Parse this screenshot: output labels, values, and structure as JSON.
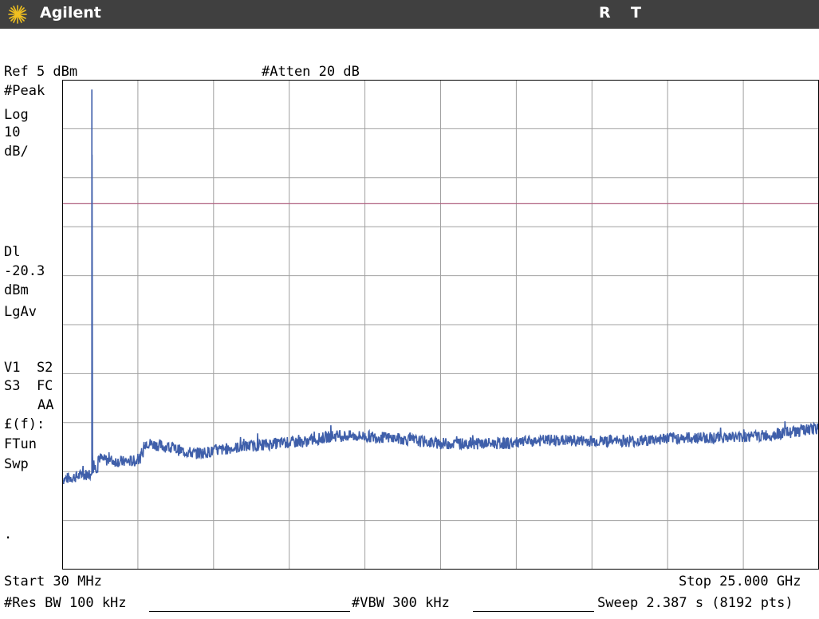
{
  "header": {
    "brand": "Agilent",
    "logo_icon": "agilent-spark-icon",
    "status_r": "R",
    "status_t": "T"
  },
  "top_bar": {
    "ref_level": "Ref 5 dBm",
    "attenuation": "#Atten 20 dB"
  },
  "left_annotations": {
    "detector": "#Peak",
    "scale_type": "Log",
    "scale_value": "10",
    "scale_unit": "dB/",
    "display_line_label": "Dl",
    "display_line_value": "-20.3",
    "display_line_unit": "dBm",
    "averaging": "LgAv",
    "trace_status_1": "V1  S2",
    "trace_status_2": "S3  FC",
    "trace_status_3": "AA",
    "correction": "£(f):",
    "ftun": "FTun",
    "swp": "Swp",
    "dot": "."
  },
  "bottom_bar": {
    "start": "Start 30 MHz",
    "stop": "Stop 25.000 GHz",
    "rbw": "#Res BW 100 kHz",
    "vbw": "#VBW 300 kHz",
    "sweep": "Sweep 2.387 s (8192 pts)"
  },
  "colors": {
    "trace": "#3f5faa",
    "display_line": "#b06080",
    "grid": "#a0a0a0",
    "title_bar": "#404040"
  },
  "chart_data": {
    "type": "line",
    "x_unit": "MHz",
    "y_unit": "dBm",
    "xlim": [
      30,
      25000
    ],
    "ylim": [
      -95,
      5
    ],
    "ref_level_dbm": 5,
    "db_per_div": 10,
    "divisions_x": 10,
    "divisions_y": 10,
    "grid": true,
    "display_line_dbm": -20.3,
    "noise_amplitude_db": 1.2,
    "series": [
      {
        "x": [
          30,
          980,
          1005,
          1010,
          1030,
          1040,
          1200,
          1210,
          1260,
          1400,
          2000,
          2500,
          2700,
          2720,
          2760,
          3000,
          3500,
          4000,
          4400,
          5000,
          5500,
          5800,
          6000,
          7000,
          8000,
          9000,
          10000,
          11000,
          12000,
          12500,
          14000,
          15000,
          16000,
          18000,
          19000,
          20000,
          22000,
          23000,
          25000
        ],
        "y": [
          -76.6,
          -75.4,
          -75.0,
          3.0,
          -74.8,
          -74.2,
          -74.2,
          -71.8,
          -72.2,
          -72.6,
          -73.0,
          -72.8,
          -71.6,
          -69.5,
          -69.0,
          -69.4,
          -70.0,
          -70.8,
          -71.3,
          -70.9,
          -70.3,
          -70.1,
          -69.9,
          -69.3,
          -68.9,
          -67.7,
          -67.8,
          -68.2,
          -68.9,
          -69.3,
          -69.3,
          -69.2,
          -68.6,
          -68.8,
          -68.8,
          -68.2,
          -68.0,
          -67.8,
          -66.2
        ]
      }
    ]
  }
}
